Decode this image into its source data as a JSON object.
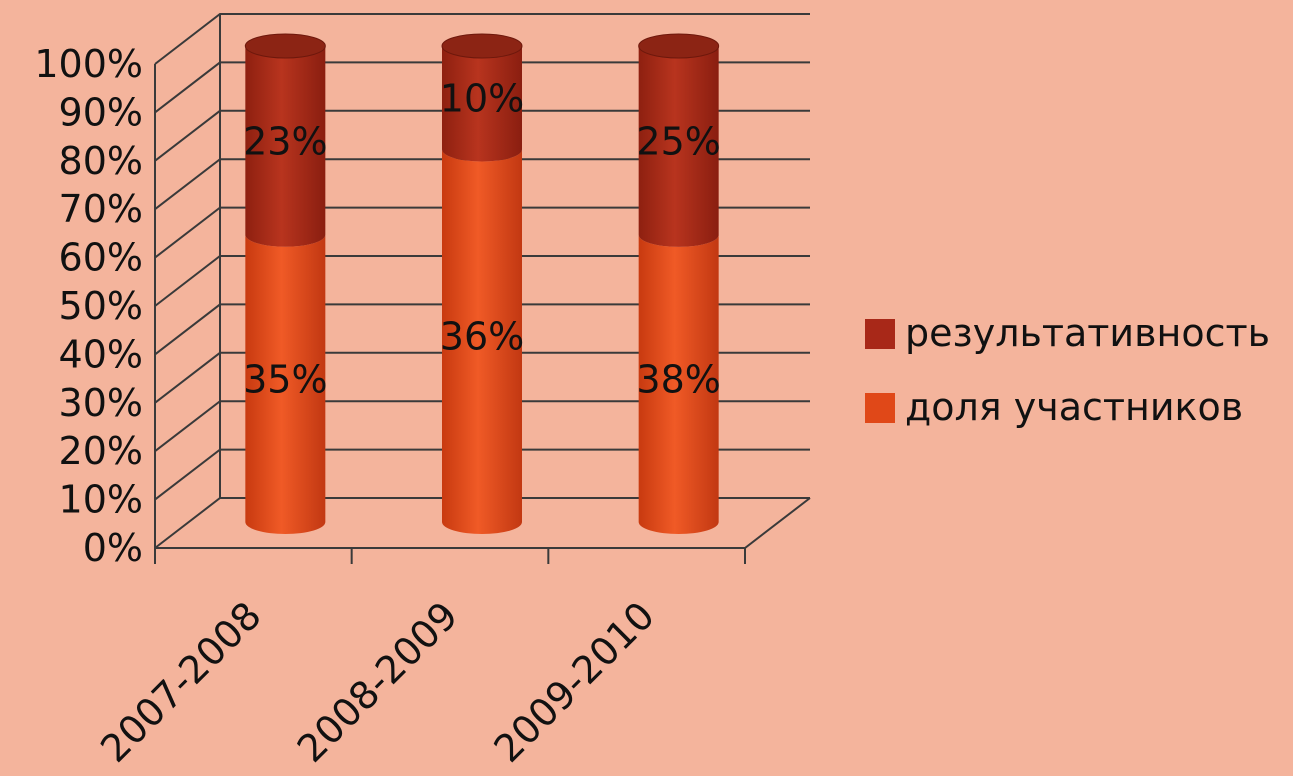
{
  "chart_data": {
    "type": "bar",
    "stacked": true,
    "normalized": true,
    "three_d": true,
    "shape": "cylinder",
    "categories": [
      "2007-2008",
      "2008-2009",
      "2009-2010"
    ],
    "series": [
      {
        "name": "доля участников",
        "values": [
          35,
          36,
          38
        ],
        "labels": [
          "35%",
          "36%",
          "38%"
        ],
        "color": "#e04818"
      },
      {
        "name": "результативность",
        "values": [
          23,
          10,
          25
        ],
        "labels": [
          "23%",
          "10%",
          "25%"
        ],
        "color": "#a82818"
      }
    ],
    "y_ticks": [
      "0%",
      "10%",
      "20%",
      "30%",
      "40%",
      "50%",
      "60%",
      "70%",
      "80%",
      "90%",
      "100%"
    ],
    "ylim": [
      0,
      100
    ],
    "grid": true,
    "legend": {
      "placement": "right",
      "order": [
        "результативность",
        "доля участников"
      ]
    },
    "background": "#f4b49c"
  }
}
